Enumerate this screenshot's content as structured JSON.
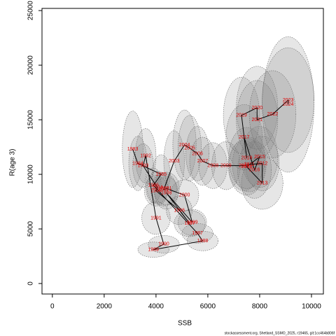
{
  "chart_data": {
    "type": "scatter",
    "xlabel": "SSB",
    "ylabel": "R(age 3)",
    "caption": "stockassessment.org, Shetland_SSMO_2025, r19465, git:1cc464b806f",
    "xlim": [
      -400,
      10460
    ],
    "ylim": [
      -960,
      25200
    ],
    "xticks": [
      0,
      2000,
      4000,
      6000,
      8000,
      10000
    ],
    "yticks": [
      0,
      5000,
      10000,
      15000,
      20000,
      25000
    ],
    "point_color": "#e00000",
    "line_color": "#000000",
    "ellipse_color": "#808080",
    "labels": [
      "1983",
      "1984",
      "1985",
      "1986",
      "1987",
      "1988",
      "1989",
      "1990",
      "1991",
      "1992",
      "1993",
      "1994",
      "1995",
      "1996",
      "1997",
      "1998",
      "1999",
      "2000",
      "2001",
      "2002",
      "2003",
      "2004",
      "2005",
      "2006",
      "2007",
      "2008",
      "2009",
      "2010",
      "2011",
      "2012",
      "2013",
      "2014",
      "2015",
      "2016",
      "2017",
      "2018",
      "2019",
      "2020",
      "2021",
      "2022",
      "2023",
      "2024"
    ],
    "x": [
      3100,
      3300,
      4200,
      3900,
      5600,
      5800,
      3900,
      4300,
      4000,
      3600,
      3500,
      4050,
      4000,
      4900,
      5300,
      4400,
      5400,
      5100,
      4400,
      4300,
      4700,
      5100,
      5300,
      5600,
      5800,
      6200,
      6700,
      7400,
      7600,
      8100,
      8100,
      7500,
      8000,
      7800,
      7400,
      7500,
      7300,
      7900,
      7900,
      8500,
      9100,
      9100
    ],
    "y": [
      12300,
      11000,
      10000,
      9000,
      4600,
      3900,
      3100,
      3600,
      6000,
      11700,
      10800,
      8800,
      8500,
      6700,
      5500,
      8300,
      5600,
      8100,
      8700,
      8600,
      11200,
      12700,
      12400,
      11900,
      11200,
      10800,
      10800,
      10800,
      10900,
      11000,
      9200,
      10700,
      11600,
      10400,
      13400,
      11500,
      15400,
      16100,
      15000,
      15500,
      16800,
      16400
    ],
    "x_err": [
      400,
      350,
      350,
      300,
      600,
      600,
      600,
      600,
      550,
      400,
      400,
      400,
      450,
      500,
      600,
      450,
      550,
      550,
      500,
      500,
      400,
      450,
      450,
      450,
      500,
      550,
      550,
      600,
      650,
      650,
      800,
      700,
      700,
      650,
      700,
      700,
      700,
      800,
      800,
      900,
      1000,
      1000
    ],
    "y_err": [
      3500,
      2500,
      1800,
      1600,
      900,
      900,
      700,
      800,
      1500,
      2500,
      2000,
      1500,
      1400,
      1300,
      1200,
      1500,
      1200,
      1400,
      1500,
      1500,
      2800,
      3200,
      3000,
      2500,
      2200,
      2100,
      2200,
      2300,
      2500,
      2500,
      2400,
      2600,
      2800,
      2600,
      3000,
      2800,
      3500,
      3800,
      3600,
      4000,
      4800,
      6200
    ]
  }
}
